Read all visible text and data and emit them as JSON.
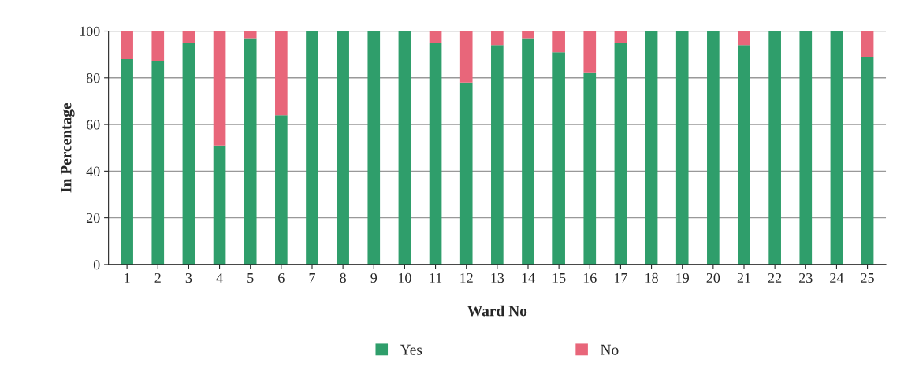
{
  "chart_data": {
    "type": "bar",
    "stacked": true,
    "xlabel": "Ward No",
    "ylabel": "In Percentage",
    "categories": [
      "1",
      "2",
      "3",
      "4",
      "5",
      "6",
      "7",
      "8",
      "9",
      "10",
      "11",
      "12",
      "13",
      "14",
      "15",
      "16",
      "17",
      "18",
      "19",
      "20",
      "21",
      "22",
      "23",
      "24",
      "25"
    ],
    "series": [
      {
        "name": "Yes",
        "color": "#2f9e6b",
        "values": [
          88,
          87,
          95,
          51,
          97,
          64,
          100,
          100,
          100,
          100,
          95,
          78,
          94,
          97,
          91,
          82,
          95,
          100,
          100,
          100,
          94,
          100,
          100,
          100,
          89
        ]
      },
      {
        "name": "No",
        "color": "#e8667a",
        "values": [
          12,
          13,
          5,
          49,
          3,
          36,
          null,
          null,
          null,
          null,
          5,
          22,
          6,
          3,
          9,
          18,
          5,
          null,
          null,
          null,
          6,
          null,
          null,
          null,
          11
        ]
      }
    ],
    "ylim": [
      0,
      100
    ],
    "yticks": [
      0,
      20,
      40,
      60,
      80,
      100
    ],
    "grid": "y",
    "legend": "bottom"
  }
}
